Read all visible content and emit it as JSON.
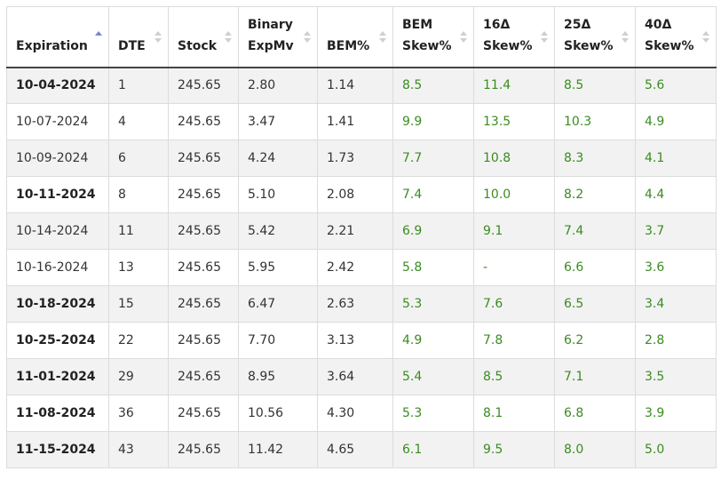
{
  "table": {
    "columns": [
      {
        "lines": [
          "Expiration"
        ],
        "sort": "asc"
      },
      {
        "lines": [
          "DTE"
        ],
        "sort": "both"
      },
      {
        "lines": [
          "Stock"
        ],
        "sort": "both"
      },
      {
        "lines": [
          "Binary",
          "ExpMv"
        ],
        "sort": "both"
      },
      {
        "lines": [
          "BEM%"
        ],
        "sort": "both"
      },
      {
        "lines": [
          "BEM",
          "Skew%"
        ],
        "sort": "both"
      },
      {
        "lines": [
          "16Δ",
          "Skew%"
        ],
        "sort": "both"
      },
      {
        "lines": [
          "25Δ",
          "Skew%"
        ],
        "sort": "both"
      },
      {
        "lines": [
          "40Δ",
          "Skew%"
        ],
        "sort": "both"
      }
    ],
    "rows": [
      {
        "expiration": "10-04-2024",
        "bold": true,
        "dte": "1",
        "stock": "245.65",
        "binary_expmv": "2.80",
        "bem_pct": "1.14",
        "bem_skew": "8.5",
        "d16_skew": "11.4",
        "d25_skew": "8.5",
        "d40_skew": "5.6"
      },
      {
        "expiration": "10-07-2024",
        "bold": false,
        "dte": "4",
        "stock": "245.65",
        "binary_expmv": "3.47",
        "bem_pct": "1.41",
        "bem_skew": "9.9",
        "d16_skew": "13.5",
        "d25_skew": "10.3",
        "d40_skew": "4.9"
      },
      {
        "expiration": "10-09-2024",
        "bold": false,
        "dte": "6",
        "stock": "245.65",
        "binary_expmv": "4.24",
        "bem_pct": "1.73",
        "bem_skew": "7.7",
        "d16_skew": "10.8",
        "d25_skew": "8.3",
        "d40_skew": "4.1"
      },
      {
        "expiration": "10-11-2024",
        "bold": true,
        "dte": "8",
        "stock": "245.65",
        "binary_expmv": "5.10",
        "bem_pct": "2.08",
        "bem_skew": "7.4",
        "d16_skew": "10.0",
        "d25_skew": "8.2",
        "d40_skew": "4.4"
      },
      {
        "expiration": "10-14-2024",
        "bold": false,
        "dte": "11",
        "stock": "245.65",
        "binary_expmv": "5.42",
        "bem_pct": "2.21",
        "bem_skew": "6.9",
        "d16_skew": "9.1",
        "d25_skew": "7.4",
        "d40_skew": "3.7"
      },
      {
        "expiration": "10-16-2024",
        "bold": false,
        "dte": "13",
        "stock": "245.65",
        "binary_expmv": "5.95",
        "bem_pct": "2.42",
        "bem_skew": "5.8",
        "d16_skew": "-",
        "d25_skew": "6.6",
        "d40_skew": "3.6"
      },
      {
        "expiration": "10-18-2024",
        "bold": true,
        "dte": "15",
        "stock": "245.65",
        "binary_expmv": "6.47",
        "bem_pct": "2.63",
        "bem_skew": "5.3",
        "d16_skew": "7.6",
        "d25_skew": "6.5",
        "d40_skew": "3.4"
      },
      {
        "expiration": "10-25-2024",
        "bold": true,
        "dte": "22",
        "stock": "245.65",
        "binary_expmv": "7.70",
        "bem_pct": "3.13",
        "bem_skew": "4.9",
        "d16_skew": "7.8",
        "d25_skew": "6.2",
        "d40_skew": "2.8"
      },
      {
        "expiration": "11-01-2024",
        "bold": true,
        "dte": "29",
        "stock": "245.65",
        "binary_expmv": "8.95",
        "bem_pct": "3.64",
        "bem_skew": "5.4",
        "d16_skew": "8.5",
        "d25_skew": "7.1",
        "d40_skew": "3.5"
      },
      {
        "expiration": "11-08-2024",
        "bold": true,
        "dte": "36",
        "stock": "245.65",
        "binary_expmv": "10.56",
        "bem_pct": "4.30",
        "bem_skew": "5.3",
        "d16_skew": "8.1",
        "d25_skew": "6.8",
        "d40_skew": "3.9"
      },
      {
        "expiration": "11-15-2024",
        "bold": true,
        "dte": "43",
        "stock": "245.65",
        "binary_expmv": "11.42",
        "bem_pct": "4.65",
        "bem_skew": "6.1",
        "d16_skew": "9.5",
        "d25_skew": "8.0",
        "d40_skew": "5.0"
      }
    ]
  },
  "colors": {
    "skew_green": "#3a8c1f",
    "sort_active": "#7a86c9",
    "sort_inactive": "#cfcfcf",
    "stripe": "#f2f2f2"
  },
  "icons": {
    "sort_asc": "sort-asc-icon",
    "sort_both": "sort-icon"
  }
}
